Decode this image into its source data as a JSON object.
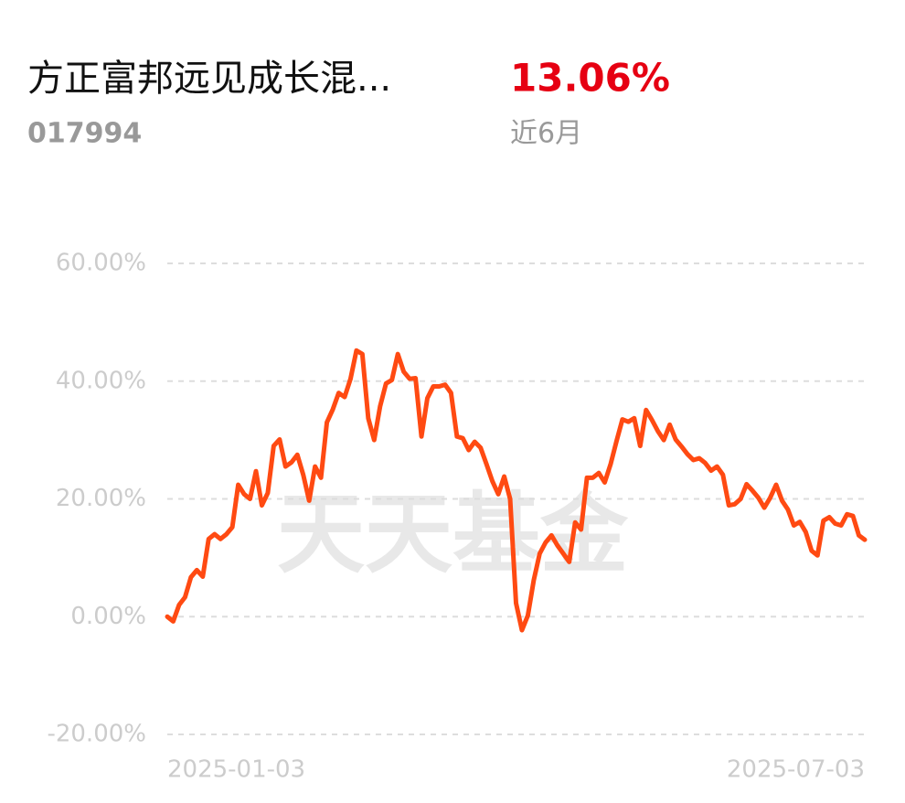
{
  "header": {
    "fund_name": "方正富邦远见成长混...",
    "fund_code": "017994",
    "return": "13.06%",
    "period": "近6月"
  },
  "chart_data": {
    "type": "line",
    "watermark": "天天基金",
    "color": "#ff4a12",
    "categories": [
      "2025-01-03",
      null,
      null,
      null,
      null,
      null,
      null,
      null,
      null,
      null,
      null,
      null,
      null,
      null,
      null,
      null,
      null,
      null,
      null,
      null,
      null,
      null,
      null,
      null,
      null,
      null,
      null,
      null,
      null,
      null,
      null,
      null,
      null,
      null,
      null,
      null,
      null,
      null,
      null,
      null,
      null,
      null,
      null,
      null,
      null,
      null,
      null,
      null,
      null,
      null,
      null,
      null,
      null,
      null,
      null,
      null,
      null,
      null,
      null,
      null,
      null,
      null,
      null,
      null,
      null,
      null,
      null,
      null,
      null,
      null,
      null,
      null,
      null,
      null,
      null,
      null,
      null,
      null,
      null,
      null,
      null,
      null,
      null,
      null,
      null,
      null,
      null,
      null,
      null,
      null,
      null,
      null,
      null,
      null,
      null,
      null,
      null,
      null,
      null,
      null,
      null,
      null,
      null,
      null,
      null,
      null,
      null,
      null,
      null,
      null,
      null,
      null,
      null,
      null,
      null,
      null,
      null,
      null,
      "2025-07-03"
    ],
    "values": [
      0,
      -0.8,
      2,
      3.3,
      6.7,
      7.9,
      6.8,
      13.2,
      14,
      13.2,
      14,
      15.2,
      22.4,
      20.8,
      20,
      24.7,
      18.9,
      21,
      29,
      30.1,
      25.5,
      26.2,
      27.5,
      24.1,
      19.7,
      25.5,
      23.6,
      33,
      35.2,
      38,
      37.3,
      40.4,
      45.2,
      44.6,
      33.7,
      30,
      35.7,
      39.6,
      40.2,
      44.6,
      41.6,
      40.4,
      40.5,
      30.6,
      37.1,
      39.1,
      39.1,
      39.4,
      38,
      30.6,
      30.3,
      28.3,
      29.7,
      28.7,
      25.9,
      23,
      20.8,
      23.8,
      20,
      2.3,
      -2.3,
      0.2,
      6.2,
      10.7,
      12.6,
      13.8,
      12.1,
      10.7,
      9.3,
      16,
      14.8,
      23.6,
      23.6,
      24.4,
      22.8,
      25.9,
      29.8,
      33.5,
      33.1,
      33.7,
      29,
      35.1,
      33.4,
      31.5,
      30,
      32.6,
      30.1,
      28.9,
      27.6,
      26.6,
      26.9,
      26.1,
      24.8,
      25.5,
      24.1,
      18.9,
      19.1,
      20,
      22.5,
      21.4,
      20.2,
      18.5,
      20.2,
      22.4,
      19.7,
      18.2,
      15.5,
      16.1,
      14.4,
      11.2,
      10.4,
      16.3,
      16.9,
      15.8,
      15.5,
      17.4,
      17.1,
      13.8,
      13.06
    ],
    "ylim": [
      -20,
      60
    ],
    "yticks": [
      {
        "value": 60,
        "label": "60.00%"
      },
      {
        "value": 40,
        "label": "40.00%"
      },
      {
        "value": 20,
        "label": "20.00%"
      },
      {
        "value": 0,
        "label": "0.00%"
      },
      {
        "value": -20,
        "label": "-20.00%"
      }
    ],
    "grid": true
  }
}
